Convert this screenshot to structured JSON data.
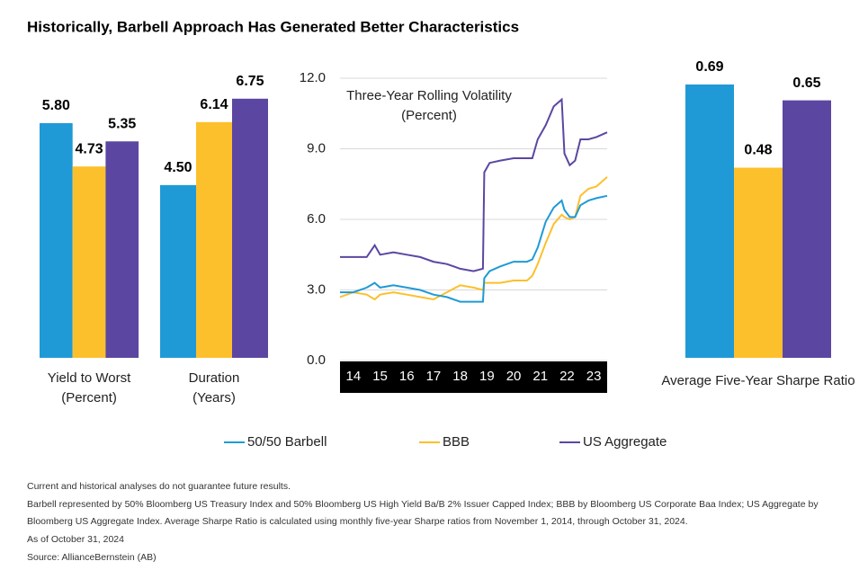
{
  "title": "Historically, Barbell Approach Has Generated Better Characteristics",
  "chart_data": [
    {
      "type": "bar",
      "xlabel": [
        "Yield to Worst",
        "(Percent)"
      ],
      "series": [
        {
          "name": "50/50 Barbell",
          "color": "#1f9ad6",
          "values": [
            5.8
          ],
          "value_labels": [
            "5.80"
          ]
        },
        {
          "name": "BBB",
          "color": "#fcc02c",
          "values": [
            4.73
          ],
          "value_labels": [
            "4.73"
          ]
        },
        {
          "name": "US Aggregate",
          "color": "#5b47a1",
          "values": [
            5.35
          ],
          "value_labels": [
            "5.35"
          ]
        }
      ]
    },
    {
      "type": "bar",
      "xlabel": [
        "Duration",
        "(Years)"
      ],
      "series": [
        {
          "name": "50/50 Barbell",
          "color": "#1f9ad6",
          "values": [
            4.5
          ],
          "value_labels": [
            "4.50"
          ]
        },
        {
          "name": "BBB",
          "color": "#fcc02c",
          "values": [
            6.14
          ],
          "value_labels": [
            "6.14"
          ]
        },
        {
          "name": "US Aggregate",
          "color": "#5b47a1",
          "values": [
            6.75
          ],
          "value_labels": [
            "6.75"
          ]
        }
      ]
    },
    {
      "type": "line",
      "title": [
        "Three-Year Rolling Volatility",
        "(Percent)"
      ],
      "x": [
        14.0,
        14.5,
        15.0,
        15.3,
        15.5,
        16.0,
        16.5,
        17.0,
        17.5,
        18.0,
        18.5,
        19.0,
        19.35,
        19.4,
        19.6,
        20.0,
        20.5,
        21.0,
        21.2,
        21.4,
        21.7,
        22.0,
        22.3,
        22.4,
        22.6,
        22.8,
        23.0,
        23.3,
        23.6,
        24.0
      ],
      "xlim": [
        14,
        24
      ],
      "xticks": [
        14,
        15,
        16,
        17,
        18,
        19,
        20,
        21,
        22,
        23
      ],
      "ylim": [
        0,
        12
      ],
      "yticks": [
        {
          "value": 0,
          "label": "0.0"
        },
        {
          "value": 3,
          "label": "3.0"
        },
        {
          "value": 6,
          "label": "6.0"
        },
        {
          "value": 9,
          "label": "9.0"
        },
        {
          "value": 12,
          "label": "12.0"
        }
      ],
      "grid": true,
      "series": [
        {
          "name": "50/50 Barbell",
          "color": "#1f9ad6",
          "values": [
            2.9,
            2.9,
            3.1,
            3.3,
            3.1,
            3.2,
            3.1,
            3.0,
            2.8,
            2.7,
            2.5,
            2.5,
            2.5,
            3.5,
            3.8,
            4.0,
            4.2,
            4.2,
            4.3,
            4.8,
            5.9,
            6.5,
            6.8,
            6.4,
            6.1,
            6.1,
            6.6,
            6.8,
            6.9,
            7.0
          ]
        },
        {
          "name": "BBB",
          "color": "#fcc02c",
          "values": [
            2.7,
            2.9,
            2.8,
            2.6,
            2.8,
            2.9,
            2.8,
            2.7,
            2.6,
            2.9,
            3.2,
            3.1,
            3.0,
            3.3,
            3.3,
            3.3,
            3.4,
            3.4,
            3.6,
            4.1,
            5.0,
            5.8,
            6.2,
            6.1,
            6.0,
            6.1,
            7.0,
            7.3,
            7.4,
            7.8
          ]
        },
        {
          "name": "US Aggregate",
          "color": "#5b47a1",
          "values": [
            4.4,
            4.4,
            4.4,
            4.9,
            4.5,
            4.6,
            4.5,
            4.4,
            4.2,
            4.1,
            3.9,
            3.8,
            3.9,
            8.0,
            8.4,
            8.5,
            8.6,
            8.6,
            8.6,
            9.4,
            10.0,
            10.8,
            11.1,
            8.8,
            8.3,
            8.5,
            9.4,
            9.4,
            9.5,
            9.7
          ]
        }
      ]
    },
    {
      "type": "bar",
      "xlabel": [
        "Average Five-Year Sharpe Ratio"
      ],
      "series": [
        {
          "name": "50/50 Barbell",
          "color": "#1f9ad6",
          "values": [
            0.69
          ],
          "value_labels": [
            "0.69"
          ]
        },
        {
          "name": "BBB",
          "color": "#fcc02c",
          "values": [
            0.48
          ],
          "value_labels": [
            "0.48"
          ]
        },
        {
          "name": "US Aggregate",
          "color": "#5b47a1",
          "values": [
            0.65
          ],
          "value_labels": [
            "0.65"
          ]
        }
      ]
    }
  ],
  "notes": [
    "Current and historical analyses do not guarantee future results.",
    "Barbell represented by 50% Bloomberg US Treasury Index and 50% Bloomberg US High Yield Ba/B 2% Issuer Capped Index; BBB by Bloomberg US Corporate Baa Index; US Aggregate by Bloomberg US Aggregate Index. Average Sharpe Ratio is calculated using monthly five-year Sharpe ratios from November 1, 2014, through October 31, 2024.",
    "As of October 31, 2024",
    "Source: AllianceBernstein (AB)"
  ]
}
